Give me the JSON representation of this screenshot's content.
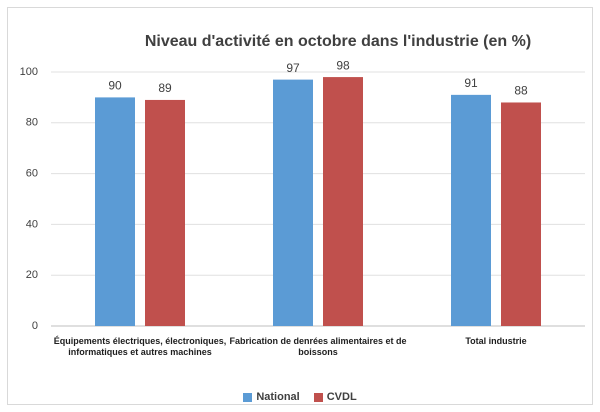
{
  "chart_data": {
    "type": "bar",
    "title": "Niveau d'activité en octobre dans l'industrie (en %)",
    "categories": [
      "Équipements électriques, électroniques, informatiques et autres machines",
      "Fabrication de denrées alimentaires et de boissons",
      "Total industrie"
    ],
    "series": [
      {
        "name": "National",
        "color": "#5b9bd5",
        "values": [
          90,
          97,
          91
        ]
      },
      {
        "name": "CVDL",
        "color": "#c0504d",
        "values": [
          89,
          98,
          88
        ]
      }
    ],
    "ylim": [
      0,
      100
    ],
    "yticks": [
      0,
      20,
      40,
      60,
      80,
      100
    ],
    "grid": true,
    "legend": "bottom"
  }
}
